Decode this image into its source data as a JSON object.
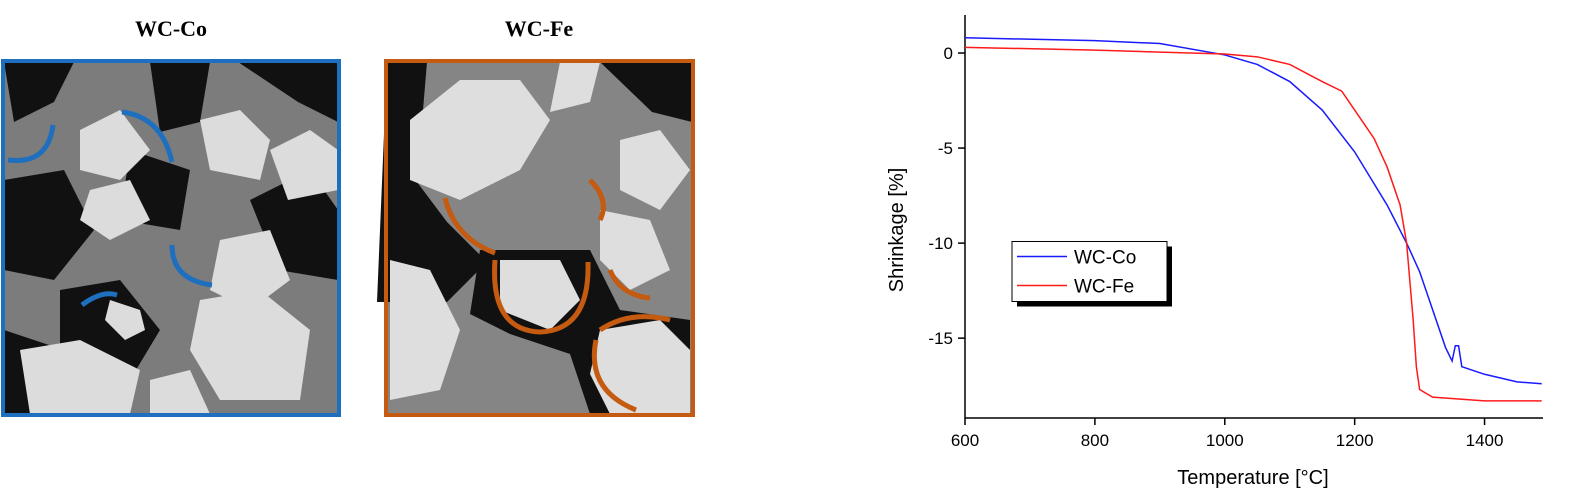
{
  "panels": [
    {
      "title": "WC-Co"
    },
    {
      "title": "WC-Fe"
    }
  ],
  "chart_data": {
    "type": "line",
    "x_label": "Temperature [°C]",
    "y_label": "Shrinkage  [%]",
    "xlim": [
      600,
      1490
    ],
    "xticks": [
      600,
      800,
      1000,
      1200,
      1400
    ],
    "ylim": [
      -19.2,
      2
    ],
    "yticks": [
      0,
      -5,
      -10,
      -15
    ],
    "legend": "center left",
    "series": [
      {
        "name": "WC-Co",
        "color": "#1a1aff",
        "x": [
          600,
          800,
          900,
          1000,
          1050,
          1100,
          1150,
          1200,
          1250,
          1280,
          1300,
          1320,
          1340,
          1350,
          1355,
          1360,
          1365,
          1400,
          1450,
          1488
        ],
        "values": [
          0.8,
          0.65,
          0.5,
          -0.1,
          -0.6,
          -1.5,
          -3,
          -5.2,
          -8,
          -10,
          -11.5,
          -13.5,
          -15.5,
          -16.2,
          -15.4,
          -15.4,
          -16.5,
          -16.9,
          -17.3,
          -17.4
        ]
      },
      {
        "name": "WC-Fe",
        "color": "#ff1a1a",
        "x": [
          600,
          800,
          1000,
          1050,
          1100,
          1150,
          1180,
          1200,
          1230,
          1250,
          1270,
          1280,
          1290,
          1295,
          1300,
          1320,
          1400,
          1488
        ],
        "values": [
          0.3,
          0.15,
          -0.05,
          -0.2,
          -0.6,
          -1.5,
          -2,
          -3,
          -4.5,
          -6,
          -8,
          -10,
          -14,
          -16.5,
          -17.7,
          -18.1,
          -18.3,
          -18.3
        ]
      }
    ]
  }
}
